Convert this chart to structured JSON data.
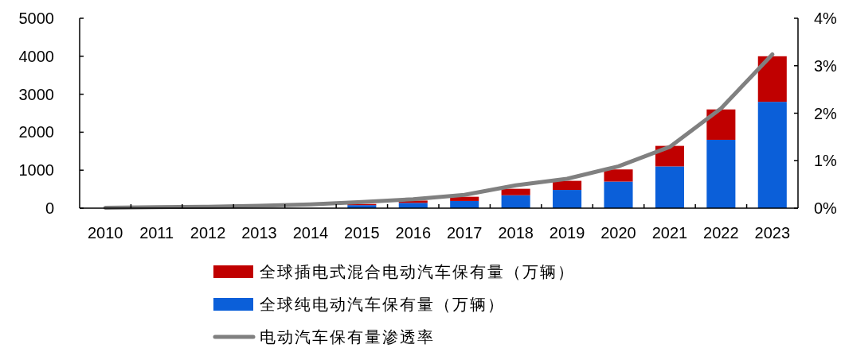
{
  "chart_data": {
    "type": "bar",
    "stacked": true,
    "categories": [
      "2010",
      "2011",
      "2012",
      "2013",
      "2014",
      "2015",
      "2016",
      "2017",
      "2018",
      "2019",
      "2020",
      "2021",
      "2022",
      "2023"
    ],
    "series": [
      {
        "name": "全球纯电动汽车保有量（万辆）",
        "color": "#0b5fd9",
        "values": [
          null,
          null,
          null,
          null,
          null,
          80,
          140,
          190,
          340,
          480,
          700,
          1100,
          1800,
          2800
        ]
      },
      {
        "name": "全球插电式混合电动汽车保有量（万辆）",
        "color": "#c00000",
        "values": [
          null,
          null,
          null,
          null,
          null,
          30,
          60,
          110,
          170,
          240,
          320,
          540,
          800,
          1200
        ]
      },
      {
        "name": "电动汽车保有量渗透率",
        "color": "#808080",
        "type": "line",
        "axis": "y2",
        "values": [
          0.01,
          0.02,
          0.03,
          0.05,
          0.08,
          0.13,
          0.19,
          0.28,
          0.48,
          0.62,
          0.88,
          1.29,
          2.1,
          3.24
        ]
      }
    ],
    "ylim": [
      0,
      5000
    ],
    "yticks": [
      0,
      1000,
      2000,
      3000,
      4000,
      5000
    ],
    "y2lim": [
      0,
      4
    ],
    "y2ticks": [
      {
        "value": 0,
        "label": "0%"
      },
      {
        "value": 1,
        "label": "1%"
      },
      {
        "value": 2,
        "label": "2%"
      },
      {
        "value": 3,
        "label": "3%"
      },
      {
        "value": 4,
        "label": "4%"
      }
    ],
    "legend": "bottom",
    "grid": false
  }
}
